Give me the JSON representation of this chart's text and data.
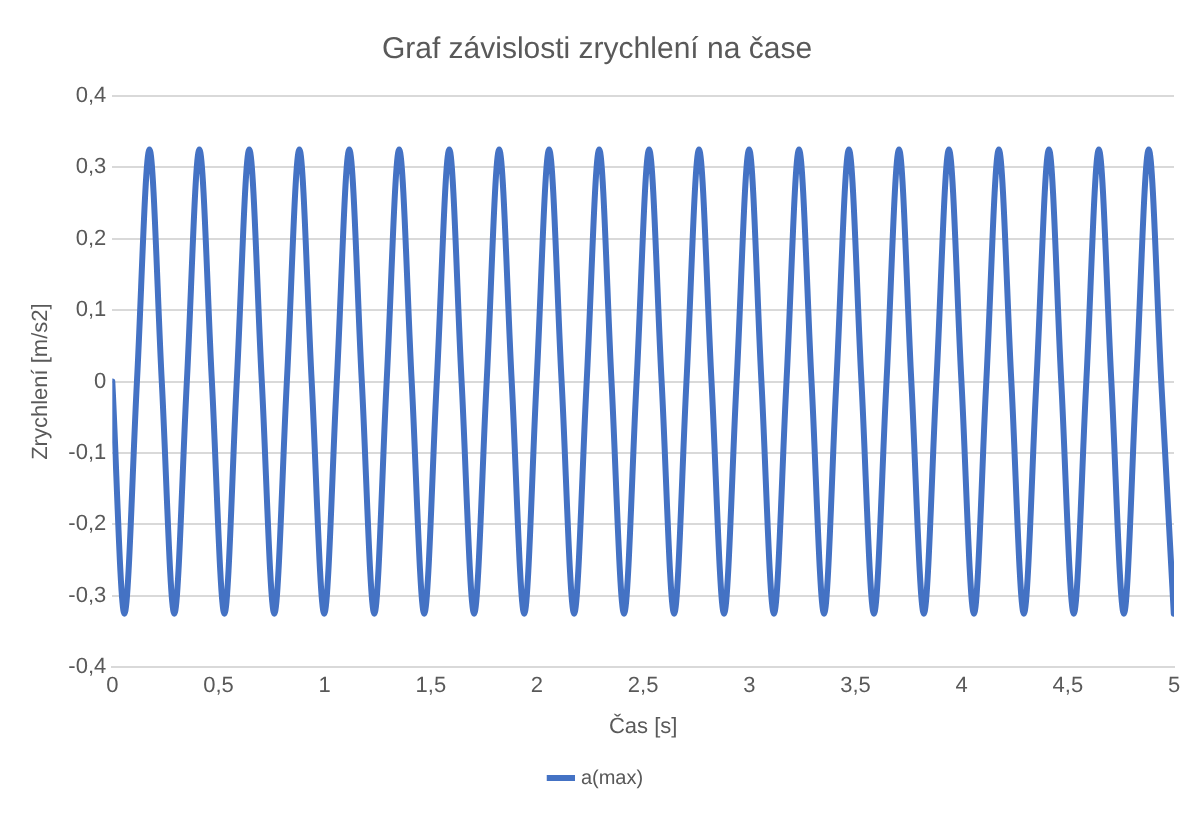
{
  "chart_data": {
    "type": "line",
    "title": "Graf závislosti zrychlení na čase",
    "xlabel": "Čas [s]",
    "ylabel": "Zrychlení [m/s2]",
    "xlim": [
      0,
      5
    ],
    "xticks": [
      0,
      {
        "value": 0.5,
        "label": "0,5"
      },
      1,
      {
        "value": 1.5,
        "label": "1,5"
      },
      2,
      {
        "value": 2.5,
        "label": "2,5"
      },
      3,
      {
        "value": 3.5,
        "label": "3,5"
      },
      4,
      {
        "value": 4.5,
        "label": "4,5"
      },
      5
    ],
    "ylim": [
      -0.4,
      0.4
    ],
    "yticks": [
      {
        "value": -0.4,
        "label": "-0,4"
      },
      {
        "value": -0.3,
        "label": "-0,3"
      },
      {
        "value": -0.2,
        "label": "-0,2"
      },
      {
        "value": -0.1,
        "label": "-0,1"
      },
      0,
      {
        "value": 0.1,
        "label": "0,1"
      },
      {
        "value": 0.2,
        "label": "0,2"
      },
      {
        "value": 0.3,
        "label": "0,3"
      },
      {
        "value": 0.4,
        "label": "0,4"
      }
    ],
    "grid": "y",
    "legend": "bottom",
    "marker": "none",
    "line_style": "solid",
    "series": [
      {
        "name": "a(max)",
        "color": "#4472c4",
        "x": [
          0,
          0.057,
          0.116,
          0.175,
          0.233,
          0.292,
          0.351,
          0.41,
          0.469,
          0.528,
          0.586,
          0.645,
          0.704,
          0.763,
          0.822,
          0.881,
          0.939,
          0.998,
          1.057,
          1.116,
          1.175,
          1.234,
          1.292,
          1.351,
          1.41,
          1.469,
          1.528,
          1.587,
          1.645,
          1.704,
          1.763,
          1.822,
          1.881,
          1.94,
          1.998,
          2.057,
          2.116,
          2.175,
          2.234,
          2.293,
          2.351,
          2.41,
          2.469,
          2.528,
          2.587,
          2.646,
          2.704,
          2.763,
          2.822,
          2.881,
          2.94,
          2.999,
          3.057,
          3.116,
          3.175,
          3.234,
          3.293,
          3.352,
          3.41,
          3.469,
          3.528,
          3.587,
          3.646,
          3.705,
          3.763,
          3.822,
          3.881,
          3.94,
          3.999,
          4.058,
          4.116,
          4.175,
          4.234,
          4.293,
          4.352,
          4.411,
          4.469,
          4.528,
          4.587,
          4.646,
          4.705,
          4.764,
          4.822,
          4.881,
          4.94,
          4.999
        ],
        "values": [
          0,
          -0.325,
          0,
          0.325,
          0,
          -0.325,
          0,
          0.325,
          0,
          -0.325,
          0,
          0.325,
          0,
          -0.325,
          0,
          0.325,
          0,
          -0.325,
          0,
          0.325,
          0,
          -0.325,
          0,
          0.325,
          0,
          -0.325,
          0,
          0.325,
          0,
          -0.325,
          0,
          0.325,
          0,
          -0.325,
          0,
          0.325,
          0,
          -0.325,
          0,
          0.325,
          0,
          -0.325,
          0,
          0.325,
          0,
          -0.325,
          0,
          0.325,
          0,
          -0.325,
          0,
          0.325,
          0,
          -0.325,
          0,
          0.325,
          0,
          -0.325,
          0,
          0.325,
          0,
          -0.325,
          0,
          0.325,
          0,
          -0.325,
          0,
          0.325,
          0,
          -0.325,
          0,
          0.325,
          0,
          -0.325,
          0,
          0.325,
          0,
          -0.325,
          0,
          0.325,
          0,
          -0.325,
          0,
          0.325,
          0,
          -0.325
        ]
      }
    ]
  }
}
